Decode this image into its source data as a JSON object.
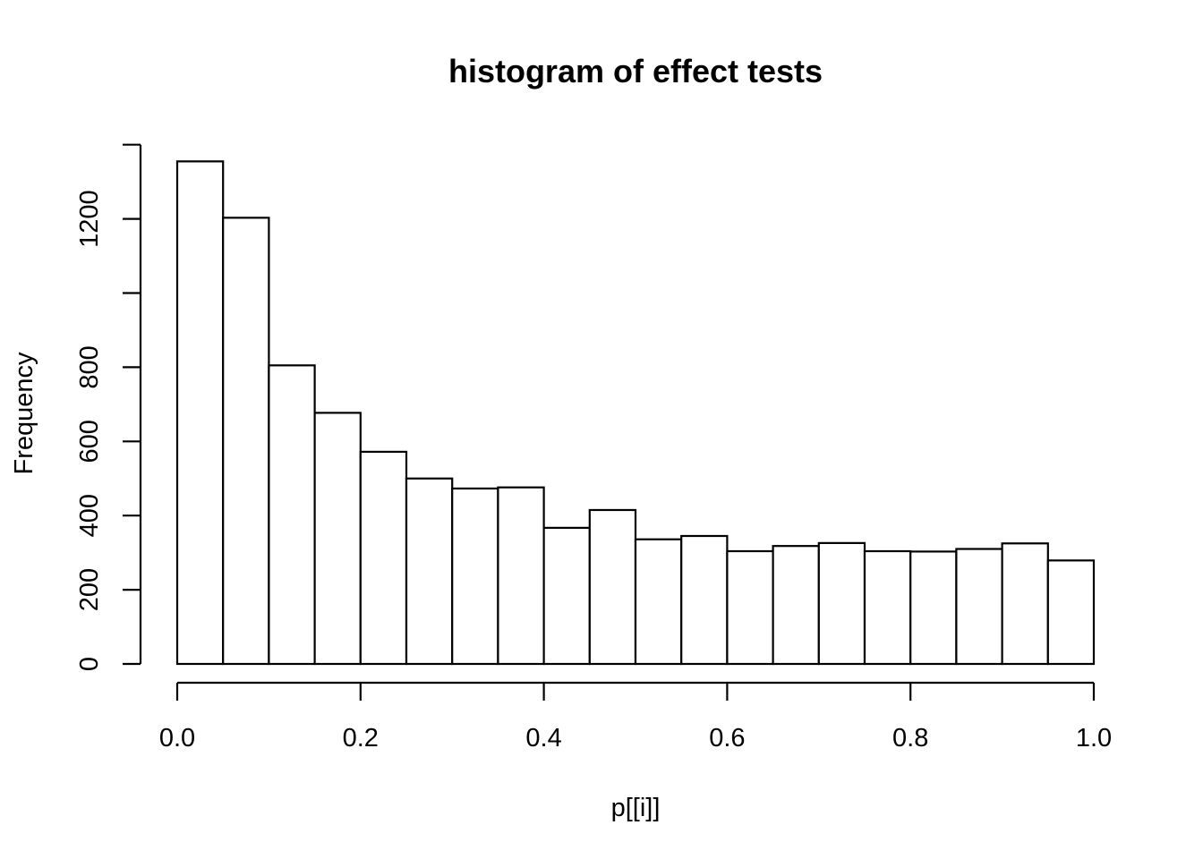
{
  "chart_data": {
    "type": "bar",
    "title": "histogram of effect tests",
    "xlabel": "p[[i]]",
    "ylabel": "Frequency",
    "bin_edges": [
      0.0,
      0.05,
      0.1,
      0.15,
      0.2,
      0.25,
      0.3,
      0.35,
      0.4,
      0.45,
      0.5,
      0.55,
      0.6,
      0.65,
      0.7,
      0.75,
      0.8,
      0.85,
      0.9,
      0.95,
      1.0
    ],
    "values": [
      1355,
      1203,
      805,
      677,
      572,
      500,
      473,
      476,
      367,
      415,
      336,
      345,
      304,
      318,
      326,
      304,
      303,
      310,
      325,
      279
    ],
    "xlim": [
      0,
      1
    ],
    "ylim": [
      0,
      1400
    ],
    "xticks": [
      "0.0",
      "0.2",
      "0.4",
      "0.6",
      "0.8",
      "1.0"
    ],
    "xtick_values": [
      0,
      0.2,
      0.4,
      0.6,
      0.8,
      1.0
    ],
    "yticks": [
      0,
      200,
      400,
      600,
      800,
      1000,
      1200,
      1400
    ],
    "ytick_labels": [
      "0",
      "200",
      "400",
      "600",
      "800",
      "",
      "1200",
      ""
    ],
    "grid": false,
    "legend": "none"
  }
}
